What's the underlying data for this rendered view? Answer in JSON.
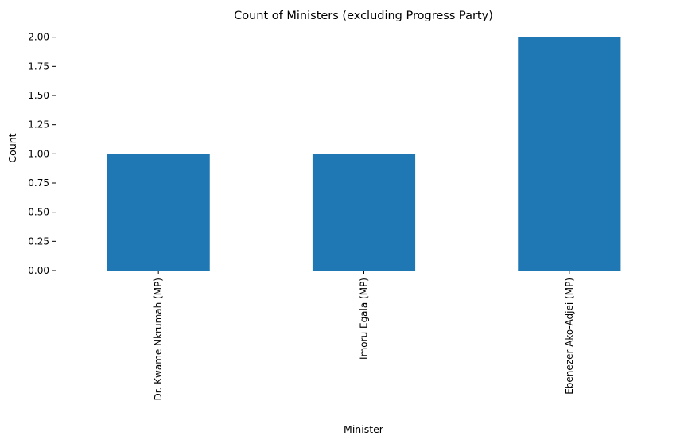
{
  "chart_data": {
    "type": "bar",
    "title": "Count of Ministers (excluding Progress Party)",
    "xlabel": "Minister",
    "ylabel": "Count",
    "categories": [
      "Dr. Kwame Nkrumah (MP)",
      "Imoru Egala (MP)",
      "Ebenezer Ako-Adjei (MP)"
    ],
    "values": [
      1,
      1,
      2
    ],
    "ylim": [
      0,
      2.1
    ],
    "yticks": [
      "0.00",
      "0.25",
      "0.50",
      "0.75",
      "1.00",
      "1.25",
      "1.50",
      "1.75",
      "2.00"
    ],
    "bar_color": "#1f77b4",
    "grid": false,
    "legend": "none"
  }
}
